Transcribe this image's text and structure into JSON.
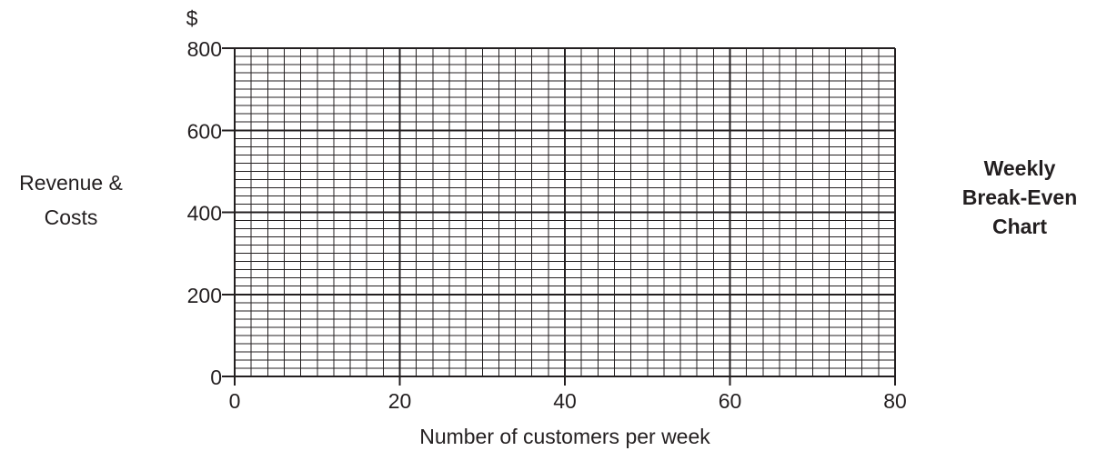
{
  "chart_data": {
    "type": "line",
    "title": [
      "Weekly",
      "Break-Even",
      "Chart"
    ],
    "xlabel": "Number of customers per week",
    "ylabel": [
      "Revenue &",
      "Costs"
    ],
    "yunit": "$",
    "xlim": [
      0,
      80
    ],
    "ylim": [
      0,
      800
    ],
    "xticks": [
      0,
      20,
      40,
      60,
      80
    ],
    "yticks": [
      0,
      200,
      400,
      600,
      800
    ],
    "xtick_labels": [
      "0",
      "20",
      "40",
      "60",
      "80"
    ],
    "ytick_labels": [
      "0",
      "200",
      "400",
      "600",
      "800"
    ],
    "grid": true,
    "minor_grid_step_x": 2,
    "minor_grid_step_y": 40,
    "series": [],
    "colors": {
      "grid_minor": "#231f20",
      "grid_major": "#231f20",
      "text": "#231f20"
    }
  }
}
